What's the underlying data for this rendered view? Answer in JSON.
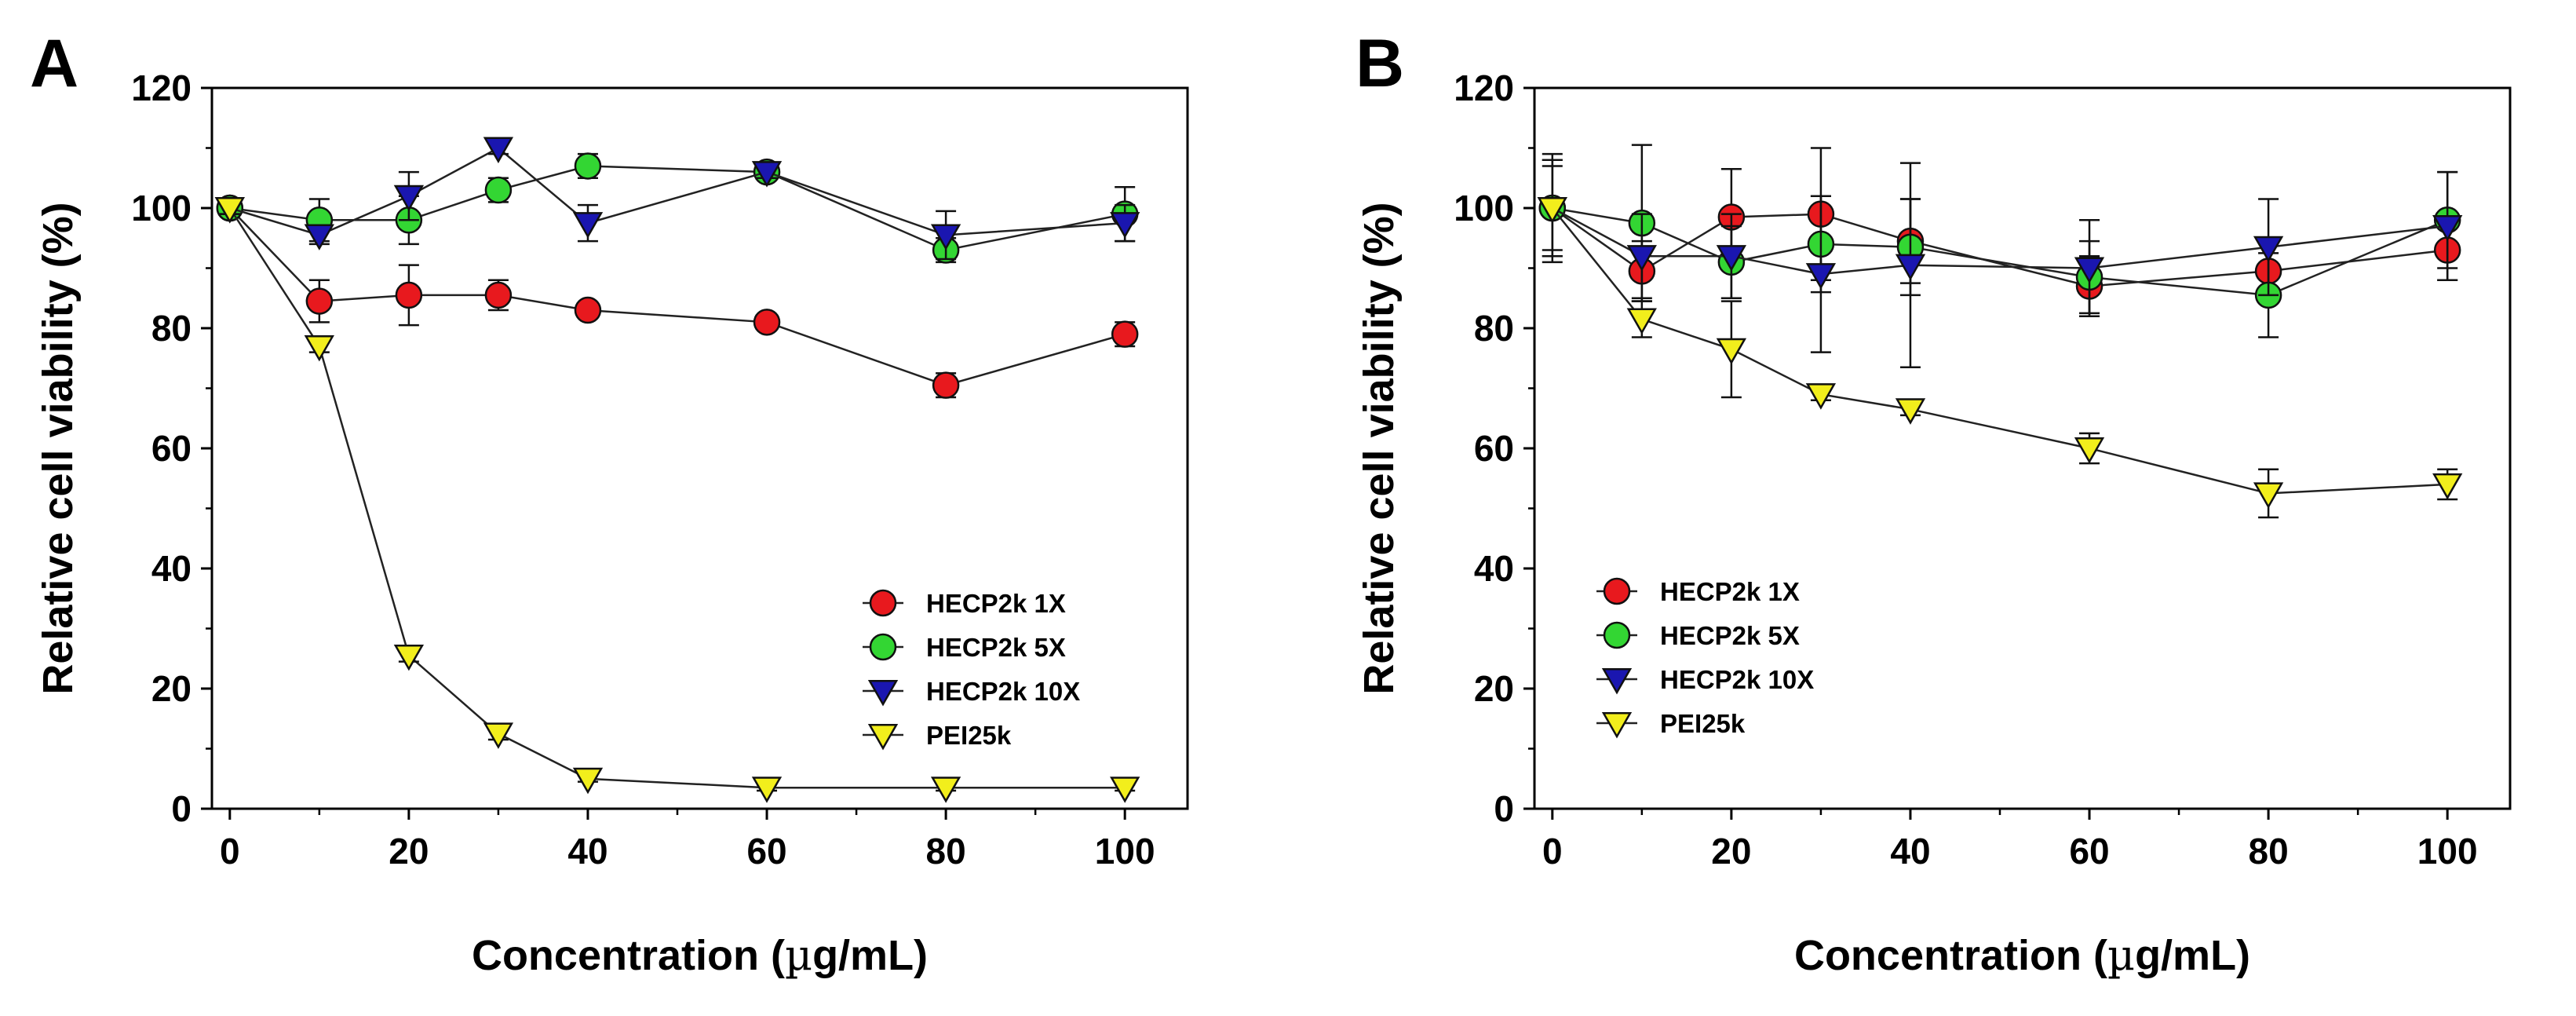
{
  "colors": {
    "HECP2k 1X": "#e8191e",
    "HECP2k 5X": "#33d633",
    "HECP2k 10X": "#1a16b0",
    "PEI25k": "#f2ee1c",
    "axis": "#000000",
    "line": "#222222"
  },
  "chart_data": [
    {
      "panel": "A",
      "type": "line",
      "xlabel": "Concentration (µg/mL)",
      "ylabel": "Relative cell viability (%)",
      "xlim": [
        -2,
        107
      ],
      "ylim": [
        0,
        120
      ],
      "xticks": [
        0,
        20,
        40,
        60,
        80,
        100
      ],
      "yticks": [
        0,
        20,
        40,
        60,
        80,
        100,
        120
      ],
      "legend_position": "center-right",
      "series": [
        {
          "name": "HECP2k 1X",
          "marker": "circle",
          "x": [
            0,
            10,
            20,
            30,
            40,
            60,
            80,
            100
          ],
          "y": [
            100,
            84.5,
            85.5,
            85.5,
            83,
            81,
            70.5,
            79
          ],
          "err": [
            1,
            3.5,
            5,
            2.5,
            1,
            1,
            2,
            2
          ]
        },
        {
          "name": "HECP2k 5X",
          "marker": "circle",
          "x": [
            0,
            10,
            20,
            30,
            40,
            60,
            80,
            100
          ],
          "y": [
            100,
            98,
            98,
            103,
            107,
            106,
            93,
            99
          ],
          "err": [
            1,
            3.5,
            4,
            2,
            2,
            1,
            2,
            4.5
          ]
        },
        {
          "name": "HECP2k 10X",
          "marker": "triangle-down",
          "x": [
            0,
            10,
            20,
            30,
            40,
            60,
            80,
            100
          ],
          "y": [
            100,
            95.5,
            102,
            110,
            97.5,
            106,
            95.5,
            97.5
          ],
          "err": [
            1,
            1.5,
            4,
            1,
            3,
            1,
            4,
            3
          ]
        },
        {
          "name": "PEI25k",
          "marker": "triangle-down",
          "x": [
            0,
            10,
            20,
            30,
            40,
            60,
            80,
            100
          ],
          "y": [
            100,
            77,
            25.5,
            12.5,
            5,
            3.5,
            3.5,
            3.5
          ],
          "err": [
            1,
            1,
            1,
            1,
            0.5,
            0.5,
            0.5,
            0.5
          ]
        }
      ]
    },
    {
      "panel": "B",
      "type": "line",
      "xlabel": "Concentration (µg/mL)",
      "ylabel": "Relative cell viability (%)",
      "xlim": [
        -2,
        107
      ],
      "ylim": [
        0,
        120
      ],
      "xticks": [
        0,
        20,
        40,
        60,
        80,
        100
      ],
      "yticks": [
        0,
        20,
        40,
        60,
        80,
        100,
        120
      ],
      "legend_position": "bottom-left",
      "series": [
        {
          "name": "HECP2k 1X",
          "marker": "circle",
          "x": [
            0,
            10,
            20,
            30,
            40,
            60,
            80,
            100
          ],
          "y": [
            100,
            89.5,
            98.5,
            99,
            94.5,
            87,
            89.5,
            93
          ],
          "err": [
            8,
            5,
            8,
            11,
            7,
            5,
            5,
            5
          ]
        },
        {
          "name": "HECP2k 5X",
          "marker": "circle",
          "x": [
            0,
            10,
            20,
            30,
            40,
            60,
            80,
            100
          ],
          "y": [
            100,
            97.5,
            91,
            94,
            93.5,
            88.5,
            85.5,
            98
          ],
          "err": [
            8,
            13,
            6,
            8,
            8,
            6,
            7,
            8
          ]
        },
        {
          "name": "HECP2k 10X",
          "marker": "triangle-down",
          "x": [
            0,
            10,
            20,
            30,
            40,
            60,
            80,
            100
          ],
          "y": [
            100,
            92,
            92,
            89,
            90.5,
            90,
            93.5,
            97
          ],
          "err": [
            9,
            7,
            7,
            13,
            17,
            8,
            8,
            9
          ]
        },
        {
          "name": "PEI25k",
          "marker": "triangle-down",
          "x": [
            0,
            10,
            20,
            30,
            40,
            60,
            80,
            100
          ],
          "y": [
            100,
            81.5,
            76.5,
            69,
            66.5,
            60,
            52.5,
            54
          ],
          "err": [
            7,
            3,
            8,
            1,
            1,
            2.5,
            4,
            2.5
          ]
        }
      ]
    }
  ]
}
